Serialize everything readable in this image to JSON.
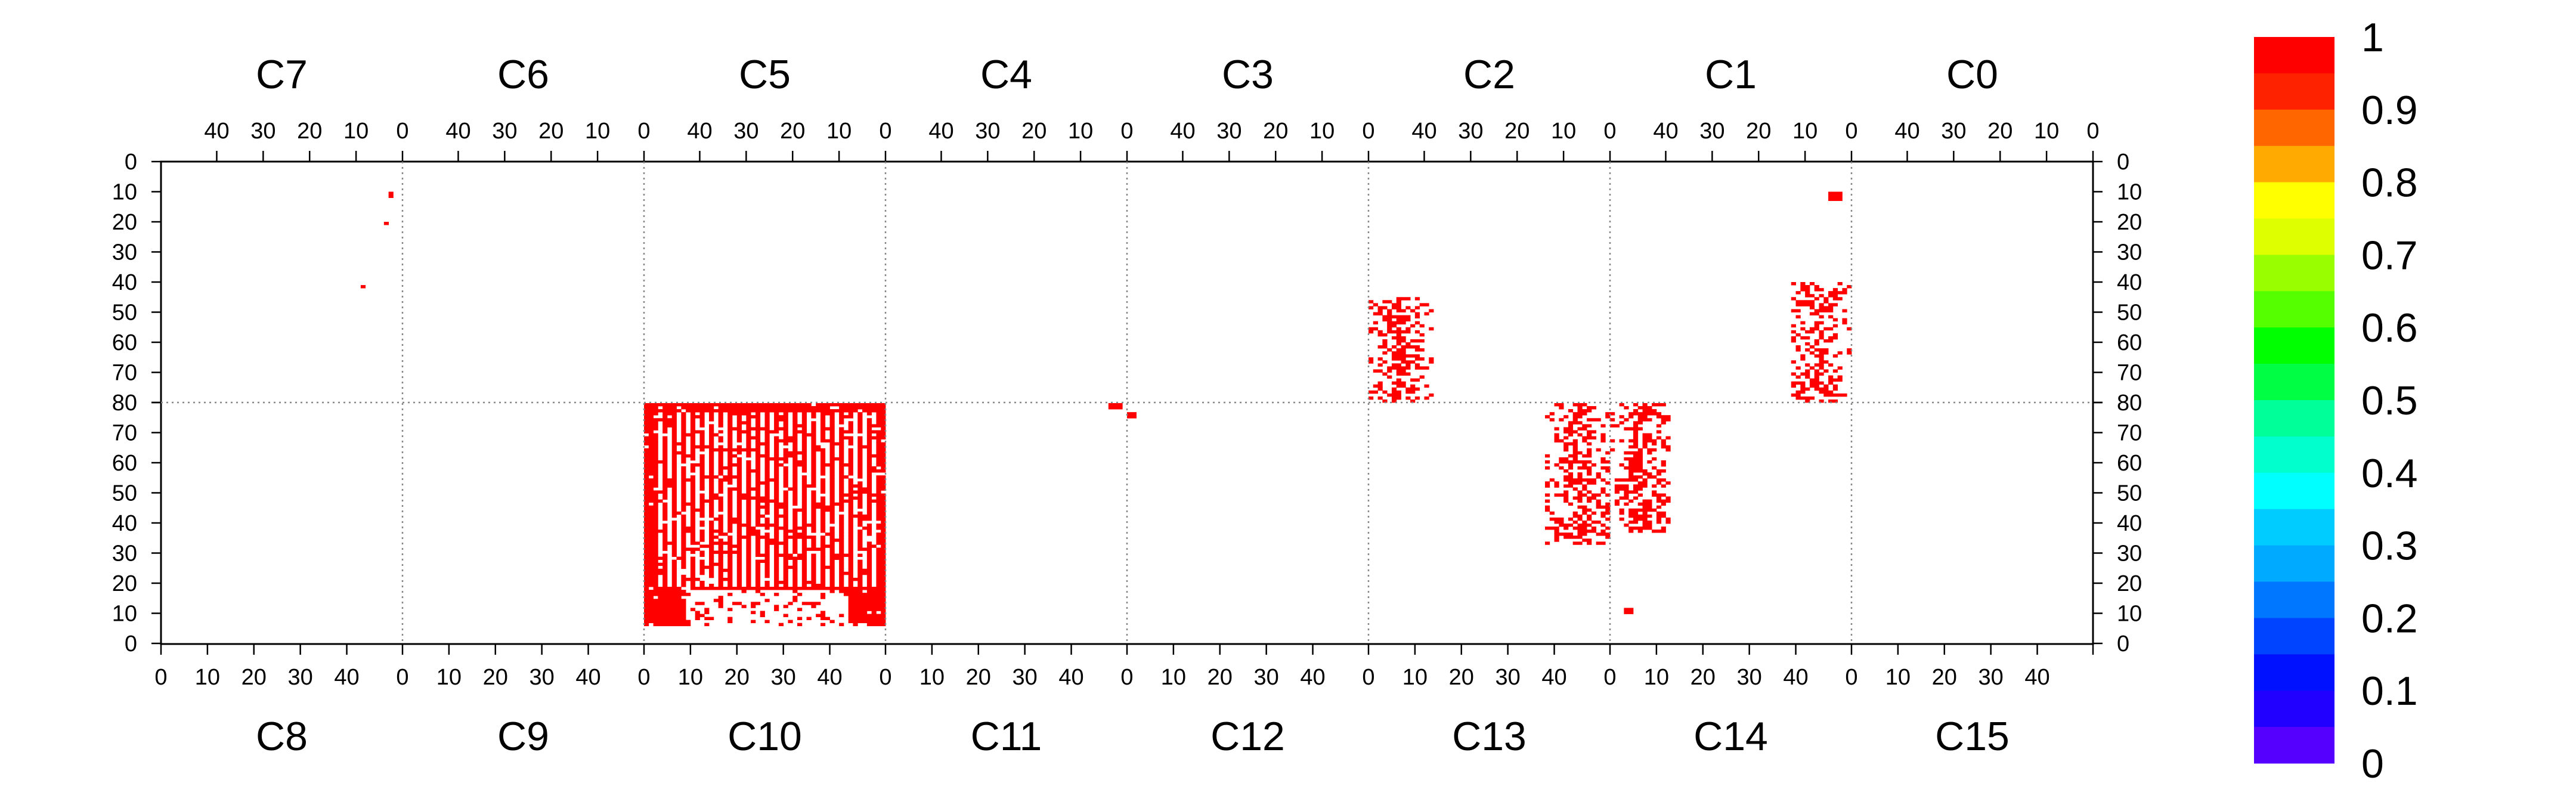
{
  "chart_data": {
    "type": "heatmap",
    "title": "",
    "chips_top": [
      "C7",
      "C6",
      "C5",
      "C4",
      "C3",
      "C2",
      "C1",
      "C0"
    ],
    "chips_bottom": [
      "C8",
      "C9",
      "C10",
      "C11",
      "C12",
      "C13",
      "C14",
      "C15"
    ],
    "x_ticks_top": [
      "40",
      "30",
      "20",
      "10",
      "0"
    ],
    "x_ticks_bottom": [
      "0",
      "10",
      "20",
      "30",
      "40"
    ],
    "y_ticks_top_half": [
      "0",
      "10",
      "20",
      "30",
      "40",
      "50",
      "60",
      "70",
      "80"
    ],
    "y_ticks_bottom_half": [
      "80",
      "70",
      "60",
      "50",
      "40",
      "30",
      "20",
      "10",
      "0"
    ],
    "columns_per_chip": 52,
    "rows_per_half": 80,
    "zrange": [
      0,
      1
    ],
    "colorbar_labels": [
      "1",
      "0.9",
      "0.8",
      "0.7",
      "0.6",
      "0.5",
      "0.4",
      "0.3",
      "0.2",
      "0.1",
      "0"
    ],
    "colorbar_colors": [
      "#ff0000",
      "#ff2200",
      "#ff6600",
      "#ffaa00",
      "#ffff00",
      "#ddff00",
      "#99ff00",
      "#55ff00",
      "#00ff00",
      "#00ff44",
      "#00ff99",
      "#00ffcc",
      "#00ffff",
      "#00ccff",
      "#00aaff",
      "#0077ff",
      "#0044ff",
      "#0011ff",
      "#2200ff",
      "#5500ff"
    ],
    "hit_color": "#ff0000",
    "regions": [
      {
        "chip": "C7",
        "x": [
          2,
          3
        ],
        "y": [
          10,
          12
        ],
        "value": 1
      },
      {
        "chip": "C7",
        "x": [
          3,
          4
        ],
        "y": [
          20,
          21
        ],
        "value": 1
      },
      {
        "chip": "C7",
        "x": [
          8,
          9
        ],
        "y": [
          41,
          42
        ],
        "value": 1
      },
      {
        "chip": "C10",
        "x": [
          0,
          52
        ],
        "y": [
          6,
          80
        ],
        "value": 1
      },
      {
        "chip": "C11",
        "x": [
          48,
          51
        ],
        "y": [
          78,
          80
        ],
        "value": 1
      },
      {
        "chip": "C12",
        "x": [
          0,
          2
        ],
        "y": [
          75,
          77
        ],
        "value": 1
      },
      {
        "chip": "C1",
        "x": [
          2,
          5
        ],
        "y": [
          10,
          13
        ],
        "value": 1
      },
      {
        "chip": "C13",
        "x": [
          38,
          52
        ],
        "y": [
          33,
          80
        ],
        "value": 1
      },
      {
        "chip": "C14",
        "x": [
          0,
          13
        ],
        "y": [
          37,
          80
        ],
        "value": 1
      },
      {
        "chip": "C2",
        "x": [
          38,
          52
        ],
        "y": [
          45,
          80
        ],
        "value": 1
      },
      {
        "chip": "C1",
        "x": [
          0,
          13
        ],
        "y": [
          40,
          80
        ],
        "value": 1
      },
      {
        "chip": "C14",
        "x": [
          3,
          5
        ],
        "y": [
          10,
          12
        ],
        "value": 1
      }
    ]
  }
}
